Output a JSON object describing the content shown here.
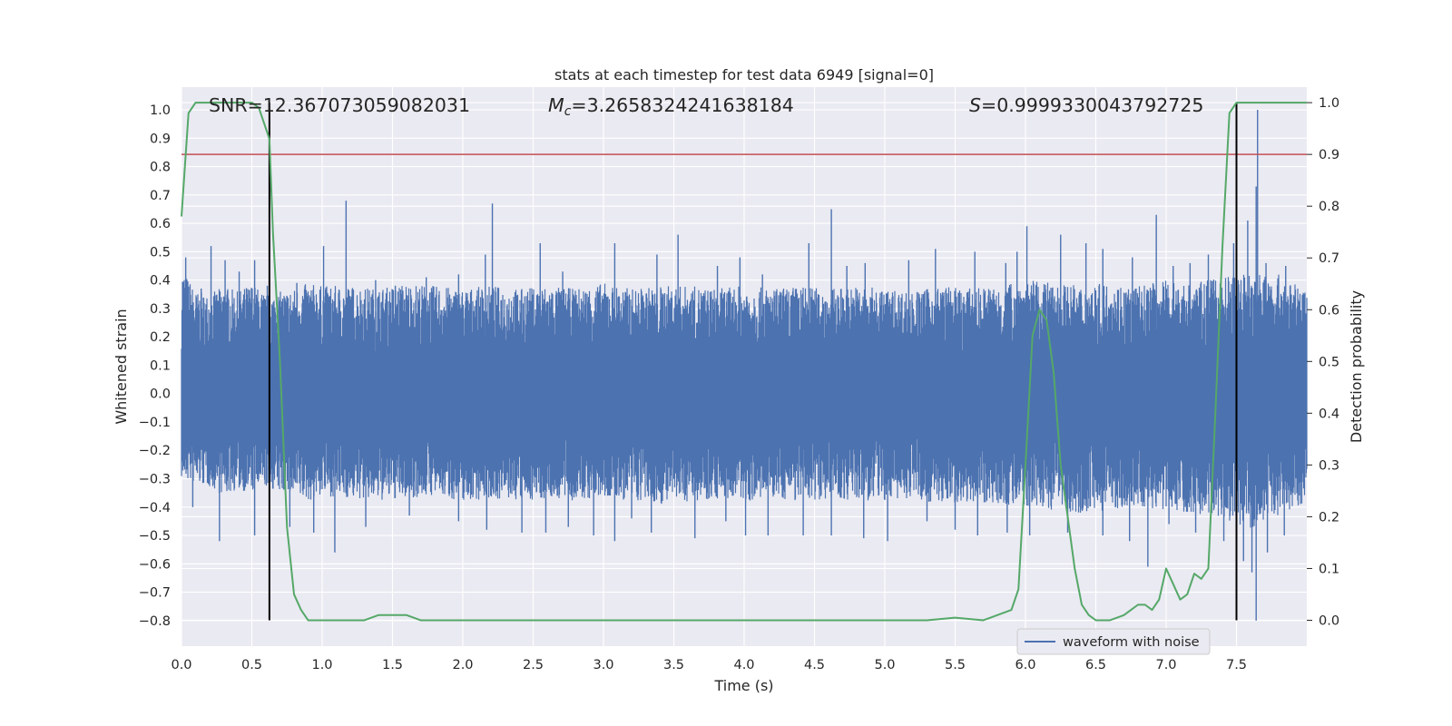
{
  "chart_data": {
    "type": "line",
    "title": "stats at each timestep for test data 6949 [signal=0]",
    "xlabel": "Time (s)",
    "ylabel": "Whitened strain",
    "ylabel_right": "Detection probability",
    "xlim": [
      0.0,
      8.0
    ],
    "ylim": [
      -0.89,
      1.08
    ],
    "ylim_right": [
      -0.05,
      1.03
    ],
    "x_ticks": [
      "0.0",
      "0.5",
      "1.0",
      "1.5",
      "2.0",
      "2.5",
      "3.0",
      "3.5",
      "4.0",
      "4.5",
      "5.0",
      "5.5",
      "6.0",
      "6.5",
      "7.0",
      "7.5"
    ],
    "y_ticks": [
      "1.0",
      "0.9",
      "0.8",
      "0.7",
      "0.6",
      "0.5",
      "0.4",
      "0.3",
      "0.2",
      "0.1",
      "0.0",
      "−0.1",
      "−0.2",
      "−0.3",
      "−0.4",
      "−0.5",
      "−0.6",
      "−0.7",
      "−0.8"
    ],
    "y_ticks_right": [
      "1.0",
      "0.9",
      "0.8",
      "0.7",
      "0.6",
      "0.5",
      "0.4",
      "0.3",
      "0.2",
      "0.1",
      "0.0"
    ],
    "annotations": {
      "snr": "SNR=12.367073059082031",
      "mc_symbol": "M",
      "mc_sub": "c",
      "mc_value": "=3.2658324241638184",
      "s_symbol": "S",
      "s_value": "=0.9999330043792725"
    },
    "threshold": 0.9,
    "vertical_markers": [
      0.625,
      7.5
    ],
    "legend": {
      "position": "lower-right",
      "entries": [
        "waveform with noise"
      ]
    },
    "grid": true,
    "series": [
      {
        "name": "waveform with noise",
        "axis": "left",
        "style": "noise-band",
        "envelope_positive": [
          [
            0.0,
            0.45
          ],
          [
            0.1,
            0.36
          ],
          [
            0.2,
            0.35
          ],
          [
            0.3,
            0.38
          ],
          [
            0.4,
            0.36
          ],
          [
            0.5,
            0.39
          ],
          [
            0.6,
            0.35
          ],
          [
            0.7,
            0.36
          ],
          [
            0.8,
            0.37
          ],
          [
            0.9,
            0.39
          ],
          [
            1.0,
            0.38
          ],
          [
            1.2,
            0.38
          ],
          [
            1.4,
            0.37
          ],
          [
            1.6,
            0.39
          ],
          [
            1.8,
            0.38
          ],
          [
            2.0,
            0.37
          ],
          [
            2.2,
            0.38
          ],
          [
            2.4,
            0.37
          ],
          [
            2.6,
            0.38
          ],
          [
            2.8,
            0.37
          ],
          [
            3.0,
            0.39
          ],
          [
            3.2,
            0.37
          ],
          [
            3.4,
            0.38
          ],
          [
            3.6,
            0.38
          ],
          [
            3.8,
            0.37
          ],
          [
            4.0,
            0.38
          ],
          [
            4.2,
            0.37
          ],
          [
            4.4,
            0.38
          ],
          [
            4.6,
            0.37
          ],
          [
            4.8,
            0.38
          ],
          [
            5.0,
            0.37
          ],
          [
            5.2,
            0.36
          ],
          [
            5.4,
            0.38
          ],
          [
            5.6,
            0.37
          ],
          [
            5.8,
            0.38
          ],
          [
            6.0,
            0.4
          ],
          [
            6.2,
            0.39
          ],
          [
            6.4,
            0.38
          ],
          [
            6.6,
            0.39
          ],
          [
            6.8,
            0.38
          ],
          [
            7.0,
            0.4
          ],
          [
            7.2,
            0.39
          ],
          [
            7.4,
            0.41
          ],
          [
            7.6,
            0.43
          ],
          [
            7.8,
            0.42
          ],
          [
            8.0,
            0.36
          ]
        ],
        "envelope_negative": [
          [
            0.0,
            -0.3
          ],
          [
            0.1,
            -0.32
          ],
          [
            0.2,
            -0.33
          ],
          [
            0.3,
            -0.36
          ],
          [
            0.4,
            -0.34
          ],
          [
            0.5,
            -0.35
          ],
          [
            0.6,
            -0.33
          ],
          [
            0.7,
            -0.35
          ],
          [
            0.8,
            -0.37
          ],
          [
            0.9,
            -0.38
          ],
          [
            1.0,
            -0.36
          ],
          [
            1.2,
            -0.37
          ],
          [
            1.4,
            -0.38
          ],
          [
            1.6,
            -0.37
          ],
          [
            1.8,
            -0.36
          ],
          [
            2.0,
            -0.38
          ],
          [
            2.2,
            -0.37
          ],
          [
            2.4,
            -0.38
          ],
          [
            2.6,
            -0.37
          ],
          [
            2.8,
            -0.38
          ],
          [
            3.0,
            -0.37
          ],
          [
            3.2,
            -0.38
          ],
          [
            3.4,
            -0.39
          ],
          [
            3.6,
            -0.38
          ],
          [
            3.8,
            -0.37
          ],
          [
            4.0,
            -0.38
          ],
          [
            4.2,
            -0.37
          ],
          [
            4.4,
            -0.38
          ],
          [
            4.6,
            -0.37
          ],
          [
            4.8,
            -0.38
          ],
          [
            5.0,
            -0.38
          ],
          [
            5.2,
            -0.37
          ],
          [
            5.4,
            -0.39
          ],
          [
            5.6,
            -0.38
          ],
          [
            5.8,
            -0.39
          ],
          [
            6.0,
            -0.4
          ],
          [
            6.2,
            -0.41
          ],
          [
            6.4,
            -0.42
          ],
          [
            6.6,
            -0.41
          ],
          [
            6.8,
            -0.4
          ],
          [
            7.0,
            -0.41
          ],
          [
            7.2,
            -0.42
          ],
          [
            7.4,
            -0.44
          ],
          [
            7.6,
            -0.48
          ],
          [
            7.8,
            -0.43
          ],
          [
            8.0,
            -0.38
          ]
        ],
        "spikes": [
          [
            0.03,
            0.48
          ],
          [
            0.14,
            0.37
          ],
          [
            0.21,
            0.52
          ],
          [
            0.31,
            0.47
          ],
          [
            0.41,
            0.43
          ],
          [
            0.52,
            0.47
          ],
          [
            0.61,
            0.38
          ],
          [
            0.82,
            0.39
          ],
          [
            1.01,
            0.52
          ],
          [
            1.09,
            0.32
          ],
          [
            1.17,
            0.68
          ],
          [
            1.38,
            0.4
          ],
          [
            1.52,
            0.38
          ],
          [
            1.74,
            0.41
          ],
          [
            1.97,
            0.42
          ],
          [
            2.16,
            0.49
          ],
          [
            2.21,
            0.67
          ],
          [
            2.55,
            0.53
          ],
          [
            2.71,
            0.43
          ],
          [
            3.08,
            0.53
          ],
          [
            3.38,
            0.49
          ],
          [
            3.53,
            0.56
          ],
          [
            3.81,
            0.45
          ],
          [
            3.97,
            0.48
          ],
          [
            4.13,
            0.42
          ],
          [
            4.46,
            0.53
          ],
          [
            4.62,
            0.65
          ],
          [
            4.73,
            0.45
          ],
          [
            4.86,
            0.46
          ],
          [
            5.17,
            0.47
          ],
          [
            5.36,
            0.51
          ],
          [
            5.64,
            0.5
          ],
          [
            5.86,
            0.46
          ],
          [
            5.94,
            0.5
          ],
          [
            6.01,
            0.59
          ],
          [
            6.25,
            0.56
          ],
          [
            6.43,
            0.53
          ],
          [
            6.55,
            0.51
          ],
          [
            6.76,
            0.48
          ],
          [
            6.93,
            0.63
          ],
          [
            7.05,
            0.45
          ],
          [
            7.17,
            0.46
          ],
          [
            7.3,
            0.49
          ],
          [
            7.48,
            0.53
          ],
          [
            7.58,
            0.61
          ],
          [
            7.64,
            0.73
          ],
          [
            7.65,
            1.0
          ],
          [
            7.71,
            0.46
          ],
          [
            7.85,
            0.45
          ],
          [
            0.08,
            -0.4
          ],
          [
            0.27,
            -0.52
          ],
          [
            0.52,
            -0.5
          ],
          [
            0.77,
            -0.47
          ],
          [
            0.94,
            -0.49
          ],
          [
            1.09,
            -0.56
          ],
          [
            1.31,
            -0.47
          ],
          [
            1.62,
            -0.43
          ],
          [
            1.97,
            -0.45
          ],
          [
            2.17,
            -0.48
          ],
          [
            2.42,
            -0.49
          ],
          [
            2.59,
            -0.49
          ],
          [
            2.75,
            -0.47
          ],
          [
            2.93,
            -0.5
          ],
          [
            3.08,
            -0.52
          ],
          [
            3.2,
            -0.44
          ],
          [
            3.34,
            -0.49
          ],
          [
            3.65,
            -0.51
          ],
          [
            3.87,
            -0.45
          ],
          [
            4.01,
            -0.5
          ],
          [
            4.17,
            -0.5
          ],
          [
            4.42,
            -0.5
          ],
          [
            4.62,
            -0.5
          ],
          [
            4.85,
            -0.51
          ],
          [
            5.02,
            -0.52
          ],
          [
            5.3,
            -0.45
          ],
          [
            5.5,
            -0.48
          ],
          [
            5.66,
            -0.5
          ],
          [
            5.87,
            -0.49
          ],
          [
            6.03,
            -0.5
          ],
          [
            6.3,
            -0.49
          ],
          [
            6.55,
            -0.5
          ],
          [
            6.74,
            -0.52
          ],
          [
            6.87,
            -0.61
          ],
          [
            7.02,
            -0.46
          ],
          [
            7.21,
            -0.49
          ],
          [
            7.41,
            -0.52
          ],
          [
            7.55,
            -0.59
          ],
          [
            7.61,
            -0.63
          ],
          [
            7.64,
            -0.8
          ],
          [
            7.72,
            -0.56
          ],
          [
            7.84,
            -0.5
          ]
        ]
      },
      {
        "name": "",
        "axis": "right",
        "style": "line",
        "x": [
          0.0,
          0.05,
          0.1,
          0.15,
          0.2,
          0.25,
          0.3,
          0.35,
          0.4,
          0.45,
          0.5,
          0.55,
          0.6,
          0.625,
          0.65,
          0.7,
          0.75,
          0.8,
          0.85,
          0.9,
          1.0,
          1.1,
          1.2,
          1.3,
          1.4,
          1.5,
          1.6,
          1.7,
          1.8,
          2.0,
          2.2,
          2.5,
          3.0,
          3.5,
          4.0,
          4.2,
          4.5,
          4.8,
          5.0,
          5.3,
          5.5,
          5.7,
          5.75,
          5.8,
          5.9,
          5.95,
          6.0,
          6.05,
          6.1,
          6.15,
          6.2,
          6.25,
          6.3,
          6.35,
          6.4,
          6.45,
          6.5,
          6.55,
          6.6,
          6.65,
          6.7,
          6.75,
          6.8,
          6.85,
          6.9,
          6.95,
          7.0,
          7.05,
          7.1,
          7.15,
          7.2,
          7.25,
          7.3,
          7.35,
          7.4,
          7.45,
          7.5,
          7.55,
          7.6,
          7.65,
          7.7,
          7.8,
          7.9,
          8.0
        ],
        "values": [
          0.78,
          0.98,
          1.0,
          1.0,
          1.0,
          1.0,
          1.0,
          1.0,
          1.0,
          1.0,
          1.0,
          0.99,
          0.95,
          0.93,
          0.75,
          0.5,
          0.18,
          0.05,
          0.02,
          0.0,
          0.0,
          0.0,
          0.0,
          0.0,
          0.01,
          0.01,
          0.01,
          0.0,
          0.0,
          0.0,
          0.0,
          0.0,
          0.0,
          0.0,
          0.0,
          0.0,
          0.0,
          0.0,
          0.0,
          0.0,
          0.005,
          0.0,
          0.005,
          0.01,
          0.02,
          0.06,
          0.3,
          0.55,
          0.6,
          0.58,
          0.48,
          0.3,
          0.2,
          0.1,
          0.03,
          0.01,
          0.0,
          0.0,
          0.0,
          0.005,
          0.01,
          0.02,
          0.03,
          0.03,
          0.02,
          0.04,
          0.1,
          0.07,
          0.04,
          0.05,
          0.09,
          0.08,
          0.1,
          0.4,
          0.72,
          0.98,
          1.0,
          1.0,
          1.0,
          1.0,
          1.0,
          1.0,
          1.0,
          1.0
        ]
      }
    ],
    "colors": {
      "plot_background": "#eaeaf2",
      "grid": "#ffffff",
      "waveform": "#4c72b0",
      "probability": "#55a868",
      "threshold": "#c44e52",
      "markers": "#000000",
      "text": "#262626"
    }
  }
}
